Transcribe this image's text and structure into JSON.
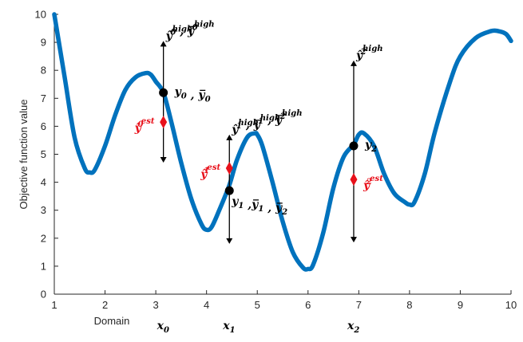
{
  "chart_data": {
    "type": "line",
    "xlabel": "Domain",
    "ylabel": "Objective function value",
    "xlim": [
      1,
      10
    ],
    "ylim": [
      0,
      10
    ],
    "xticks": [
      1,
      2,
      3,
      4,
      5,
      6,
      7,
      8,
      9,
      10
    ],
    "yticks": [
      0,
      1,
      2,
      3,
      4,
      5,
      6,
      7,
      8,
      9,
      10
    ],
    "grid": false,
    "colors": {
      "curve": "#0072BD",
      "observed": "#000000",
      "estimate": "#E8111B",
      "axis": "#262626"
    },
    "curve": {
      "x": [
        1.0,
        1.2,
        1.4,
        1.6,
        1.7,
        1.8,
        2.0,
        2.2,
        2.4,
        2.6,
        2.8,
        2.9,
        3.0,
        3.15,
        3.3,
        3.5,
        3.7,
        3.9,
        4.0,
        4.1,
        4.25,
        4.45,
        4.6,
        4.8,
        4.95,
        5.0,
        5.1,
        5.3,
        5.5,
        5.7,
        5.9,
        6.0,
        6.1,
        6.3,
        6.5,
        6.7,
        6.9,
        7.0,
        7.1,
        7.3,
        7.5,
        7.7,
        7.9,
        8.0,
        8.1,
        8.3,
        8.5,
        8.8,
        9.0,
        9.3,
        9.6,
        9.75,
        9.9,
        10.0
      ],
      "y": [
        10.0,
        7.8,
        5.6,
        4.5,
        4.35,
        4.45,
        5.3,
        6.4,
        7.3,
        7.75,
        7.9,
        7.85,
        7.6,
        7.2,
        6.2,
        4.7,
        3.4,
        2.5,
        2.3,
        2.4,
        3.0,
        3.9,
        4.8,
        5.6,
        5.75,
        5.7,
        5.3,
        4.0,
        2.6,
        1.5,
        0.95,
        0.9,
        1.05,
        2.2,
        3.8,
        4.9,
        5.35,
        5.7,
        5.75,
        5.3,
        4.3,
        3.6,
        3.3,
        3.2,
        3.3,
        4.3,
        5.8,
        7.6,
        8.5,
        9.15,
        9.4,
        9.4,
        9.3,
        9.05
      ]
    },
    "samples": [
      {
        "x_tick": "x",
        "x_sub": "0",
        "x": 3.15,
        "y_observed": 7.2,
        "y_estimate": 6.15,
        "y_high": 9.05,
        "y_low": 4.7,
        "high_label": {
          "hat": "ŷ",
          "sub": "0",
          "sup": "high",
          "sep": " , ",
          "bar": "y̅",
          "bar_sub": "0",
          "bar_sup": "high"
        },
        "obs_label": {
          "text": "y",
          "sub": "0",
          "sep": " , ",
          "bar": "y̅",
          "bar_sub": "0"
        },
        "est_label": {
          "hat": "ŷ",
          "sub": "0",
          "sup": "est"
        }
      },
      {
        "x_tick": "x",
        "x_sub": "1",
        "x": 4.45,
        "y_observed": 3.7,
        "y_estimate": 4.5,
        "y_high": 5.7,
        "y_low": 1.8,
        "high_label": {
          "hat": "ŷ",
          "sub": "1",
          "sup": "high",
          "sep": " , ",
          "bar": "y̅",
          "bar_sub": "1",
          "bar_sup": "high",
          "sep2": " , ",
          "bar2": "y̅",
          "bar2_sub": "2",
          "bar2_sup": "high"
        },
        "obs_label": {
          "text": "y",
          "sub": "1",
          "sep": " ,",
          "bar": "y̅",
          "bar_sub": "1",
          "sep2": " , ",
          "bar2": "y̅",
          "bar2_sub": "2"
        },
        "est_label": {
          "hat": "ŷ",
          "sub": "1",
          "sup": "est"
        }
      },
      {
        "x_tick": "x",
        "x_sub": "2",
        "x": 6.9,
        "y_observed": 5.3,
        "y_estimate": 4.1,
        "y_high": 8.35,
        "y_low": 1.85,
        "high_label": {
          "hat": "ŷ",
          "sub": "2",
          "sup": "high"
        },
        "obs_label": {
          "text": "y",
          "sub": "2"
        },
        "est_label": {
          "hat": "ŷ",
          "sub": "2",
          "sup": "est"
        }
      }
    ]
  }
}
